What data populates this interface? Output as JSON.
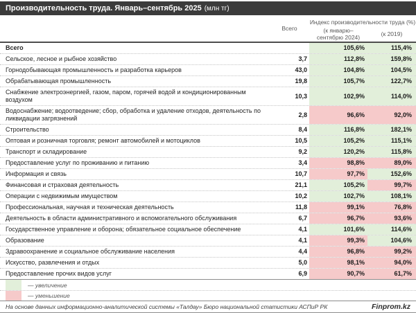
{
  "title": {
    "main": "Производительность труда. Январь–сентябрь 2025",
    "unit": "(млн тг)"
  },
  "colors": {
    "title_bar": "#3b3b3b",
    "up": "#e2efda",
    "down": "#f6caca"
  },
  "chart_data": {
    "type": "table",
    "title": "Производительность труда. Январь–сентябрь 2025 (млн тг)",
    "columns": {
      "total": "Всего",
      "group": "Индекс производительности труда (%)",
      "idx1": "(к январю–сентябрю 2024)",
      "idx2": "(к 2019)"
    },
    "rows": [
      {
        "label": "Всего",
        "total": "",
        "idx1": "105,6%",
        "d1": "up",
        "idx2": "115,4%",
        "d2": "up",
        "bold": true
      },
      {
        "label": "Сельское, лесное и рыбное хозяйство",
        "total": "3,7",
        "idx1": "112,8%",
        "d1": "up",
        "idx2": "159,8%",
        "d2": "up"
      },
      {
        "label": "Горнодобывающая промышленность и разработка карьеров",
        "total": "43,0",
        "idx1": "104,8%",
        "d1": "up",
        "idx2": "104,5%",
        "d2": "up"
      },
      {
        "label": "Обрабатывающая промышленность",
        "total": "19,8",
        "idx1": "105,7%",
        "d1": "up",
        "idx2": "122,7%",
        "d2": "up"
      },
      {
        "label": "Снабжение электроэнергией, газом, паром, горячей водой и кондиционированным воздухом",
        "total": "10,3",
        "idx1": "102,9%",
        "d1": "up",
        "idx2": "114,0%",
        "d2": "up"
      },
      {
        "label": "Водоснабжение; водоотведение; сбор, обработка и удаление отходов, деятельность по ликвидации загрязнений",
        "total": "2,8",
        "idx1": "96,6%",
        "d1": "down",
        "idx2": "92,0%",
        "d2": "down"
      },
      {
        "label": "Строительство",
        "total": "8,4",
        "idx1": "116,8%",
        "d1": "up",
        "idx2": "182,1%",
        "d2": "up"
      },
      {
        "label": "Оптовая и розничная торговля; ремонт автомобилей и мотоциклов",
        "total": "10,5",
        "idx1": "105,2%",
        "d1": "up",
        "idx2": "115,1%",
        "d2": "up"
      },
      {
        "label": "Транспорт и складирование",
        "total": "9,2",
        "idx1": "120,2%",
        "d1": "up",
        "idx2": "115,8%",
        "d2": "up"
      },
      {
        "label": "Предоставление услуг по проживанию и питанию",
        "total": "3,4",
        "idx1": "98,8%",
        "d1": "down",
        "idx2": "89,0%",
        "d2": "down"
      },
      {
        "label": "Информация и связь",
        "total": "10,7",
        "idx1": "97,7%",
        "d1": "down",
        "idx2": "152,6%",
        "d2": "up"
      },
      {
        "label": "Финансовая и страховая деятельность",
        "total": "21,1",
        "idx1": "105,2%",
        "d1": "up",
        "idx2": "99,7%",
        "d2": "down"
      },
      {
        "label": "Операции с недвижимым имуществом",
        "total": "10,2",
        "idx1": "102,7%",
        "d1": "up",
        "idx2": "108,1%",
        "d2": "up"
      },
      {
        "label": "Профессиональная, научная и техническая деятельность",
        "total": "11,8",
        "idx1": "99,1%",
        "d1": "down",
        "idx2": "76,8%",
        "d2": "down"
      },
      {
        "label": "Деятельность в области административного и вспомогательного обслуживания",
        "total": "6,7",
        "idx1": "96,7%",
        "d1": "down",
        "idx2": "93,6%",
        "d2": "down"
      },
      {
        "label": "Государственное управление и оборона; обязательное социальное обеспечение",
        "total": "4,1",
        "idx1": "101,6%",
        "d1": "up",
        "idx2": "114,6%",
        "d2": "up"
      },
      {
        "label": "Образование",
        "total": "4,1",
        "idx1": "99,3%",
        "d1": "down",
        "idx2": "104,6%",
        "d2": "up"
      },
      {
        "label": "Здравоохранение и социальное обслуживание населения",
        "total": "4,4",
        "idx1": "96,8%",
        "d1": "down",
        "idx2": "99,2%",
        "d2": "down"
      },
      {
        "label": "Искусство, развлечения и отдых",
        "total": "5,0",
        "idx1": "98,1%",
        "d1": "down",
        "idx2": "94,0%",
        "d2": "down"
      },
      {
        "label": "Предоставление прочих видов услуг",
        "total": "6,9",
        "idx1": "90,7%",
        "d1": "down",
        "idx2": "61,7%",
        "d2": "down"
      }
    ]
  },
  "legend": [
    {
      "label": "— увеличение",
      "dir": "up"
    },
    {
      "label": "— уменьшение",
      "dir": "down"
    }
  ],
  "footer": {
    "source": "На основе данных информационно-аналитической системы «Талдау» Бюро национальной статистики АСПиР РК",
    "brand": "Finprom.kz"
  }
}
